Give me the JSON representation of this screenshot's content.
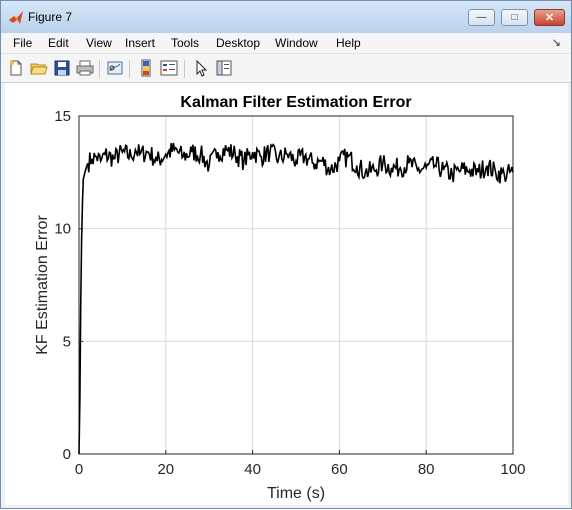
{
  "window": {
    "title": "Figure 7"
  },
  "menu": [
    "File",
    "Edit",
    "View",
    "Insert",
    "Tools",
    "Desktop",
    "Window",
    "Help"
  ],
  "toolbar_icons": [
    "new-figure-icon",
    "open-file-icon",
    "save-icon",
    "print-icon",
    "link-plot-icon",
    "colorbar-icon",
    "legend-icon",
    "pointer-icon",
    "property-editor-icon"
  ],
  "chart_data": {
    "type": "line",
    "title": "Kalman Filter Estimation Error",
    "xlabel": "Time (s)",
    "ylabel": "KF Estimation Error",
    "xlim": [
      0,
      100
    ],
    "ylim": [
      0,
      15
    ],
    "xticks": [
      0,
      20,
      40,
      60,
      80,
      100
    ],
    "yticks": [
      0,
      5,
      10,
      15
    ],
    "grid": true,
    "series": [
      {
        "color": "#000000",
        "x": [
          0,
          0.2,
          0.4,
          0.6,
          0.8,
          1,
          1.5,
          2,
          3,
          4,
          5,
          6,
          8,
          10,
          12,
          13,
          14,
          16,
          18,
          20,
          22,
          24,
          26,
          28,
          30,
          32,
          34,
          36,
          38,
          40,
          42,
          44,
          46,
          48,
          50,
          52,
          54,
          56,
          58,
          60,
          62,
          64,
          66,
          68,
          70,
          72,
          74,
          76,
          78,
          80,
          82,
          84,
          86,
          88,
          90,
          92,
          94,
          96,
          98,
          100
        ],
        "y": [
          0,
          2.5,
          6.5,
          9.5,
          11.2,
          12.2,
          12.6,
          12.9,
          13.1,
          13.2,
          13.0,
          13.3,
          13.1,
          13.4,
          13.2,
          13.5,
          13.3,
          13.4,
          13.0,
          13.3,
          13.5,
          13.2,
          13.4,
          13.3,
          12.8,
          13.4,
          13.5,
          13.3,
          13.0,
          13.4,
          13.2,
          13.4,
          13.1,
          13.3,
          13.0,
          13.2,
          12.9,
          13.0,
          12.6,
          13.0,
          13.2,
          12.8,
          12.5,
          12.6,
          12.9,
          12.7,
          12.7,
          12.9,
          12.6,
          12.7,
          12.8,
          12.6,
          12.4,
          12.6,
          12.6,
          12.5,
          12.8,
          12.5,
          12.4,
          12.5
        ]
      }
    ]
  }
}
